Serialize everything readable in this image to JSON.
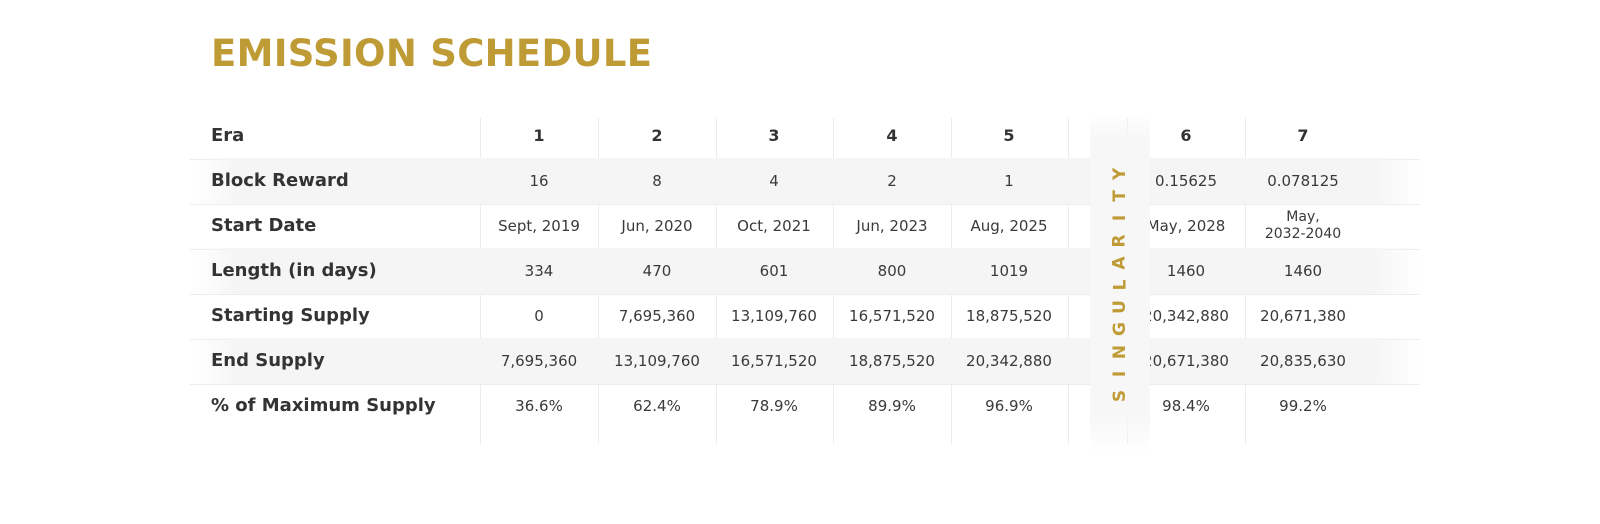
{
  "title": "EMISSION SCHEDULE",
  "divider_label": "SINGULARITY",
  "colors": {
    "accent": "#bf9b36",
    "text": "#333333",
    "row_alt": "#f5f5f5"
  },
  "header": {
    "label": "Era",
    "eras": [
      "1",
      "2",
      "3",
      "4",
      "5",
      "6",
      "7"
    ]
  },
  "rows": [
    {
      "label": "Block Reward",
      "values": [
        "16",
        "8",
        "4",
        "2",
        "1",
        "0.15625",
        "0.078125"
      ]
    },
    {
      "label": "Start Date",
      "values": [
        "Sept, 2019",
        "Jun, 2020",
        "Oct, 2021",
        "Jun,  2023",
        "Aug, 2025",
        "May, 2028",
        "May,\n2032-2040"
      ]
    },
    {
      "label": "Length (in days)",
      "values": [
        "334",
        "470",
        "601",
        "800",
        "1019",
        "1460",
        "1460"
      ]
    },
    {
      "label": "Starting Supply",
      "values": [
        "0",
        "7,695,360",
        "13,109,760",
        "16,571,520",
        "18,875,520",
        "20,342,880",
        "20,671,380"
      ]
    },
    {
      "label": "End Supply",
      "values": [
        "7,695,360",
        "13,109,760",
        "16,571,520",
        "18,875,520",
        "20,342,880",
        "20,671,380",
        "20,835,630"
      ]
    },
    {
      "label": "% of Maximum Supply",
      "values": [
        "36.6%",
        "62.4%",
        "78.9%",
        "89.9%",
        "96.9%",
        "98.4%",
        "99.2%"
      ]
    }
  ]
}
